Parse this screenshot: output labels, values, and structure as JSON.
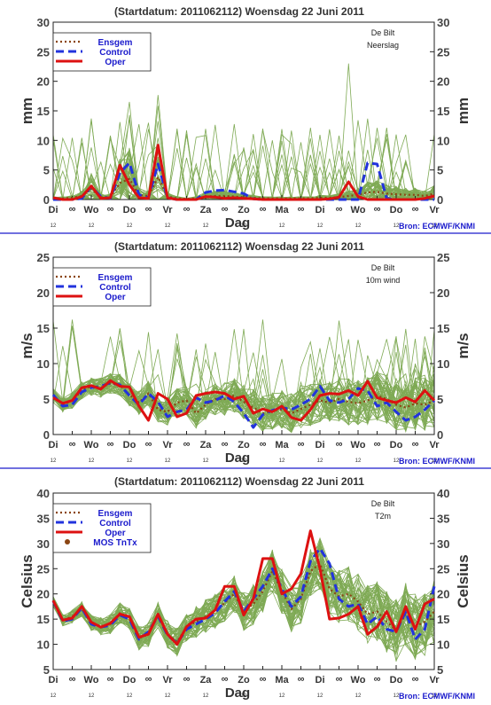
{
  "colors": {
    "ensgem": "#8B4513",
    "control": "#2233dd",
    "oper": "#dd1111",
    "members": "#7faa55",
    "mos": "#8B4513",
    "divider": "#1a1acc"
  },
  "chart_data": [
    {
      "type": "line",
      "title": "(Startdatum: 2011062112)   Woensdag  22 Juni      2011",
      "ylabel": "mm",
      "xlabel": "Dag",
      "location": "De Bilt",
      "variable": "Neerslag",
      "ylim": [
        0,
        30
      ],
      "yticks": [
        0,
        5,
        10,
        15,
        20,
        25,
        30
      ],
      "day_labels": [
        "Di",
        "Wo",
        "Do",
        "Vr",
        "Za",
        "Zo",
        "Ma",
        "Di",
        "Wo",
        "Do",
        "Vr"
      ],
      "hour_labels": [
        "12",
        "12",
        "12",
        "12",
        "12",
        "12",
        "12",
        "12",
        "12",
        "12",
        "12"
      ],
      "source": "Bron: ECMWF/KNMI",
      "legend": [
        "Ensgem",
        "Control",
        "Oper"
      ],
      "x_step_hours": 6,
      "series": [
        {
          "name": "Ensgem",
          "values": [
            0.2,
            0.2,
            0.3,
            0.6,
            1.8,
            0.4,
            0.4,
            2.8,
            3.5,
            0.8,
            0.6,
            3.8,
            0.5,
            0.2,
            0.1,
            0.2,
            0.5,
            0.6,
            0.6,
            0.5,
            0.4,
            0.3,
            0.2,
            0.2,
            0.2,
            0.2,
            0.2,
            0.2,
            0.3,
            0.3,
            0.4,
            0.6,
            0.8,
            1.2,
            1.3,
            1.0,
            0.9,
            0.8,
            0.8,
            0.6,
            1.0
          ]
        },
        {
          "name": "Control",
          "values": [
            0,
            0,
            0,
            0.2,
            2.2,
            0.5,
            0.2,
            4.5,
            6.2,
            0.8,
            0.3,
            6.0,
            0.3,
            0,
            0,
            0,
            1.2,
            1.5,
            1.6,
            1.3,
            1.0,
            0.1,
            0,
            0,
            0,
            0,
            0,
            0,
            0,
            0,
            0,
            0,
            0,
            6.2,
            6.0,
            0.2,
            0,
            0,
            0,
            0,
            0
          ]
        },
        {
          "name": "Oper",
          "values": [
            0.3,
            0,
            0,
            0.5,
            2.3,
            0.2,
            0.3,
            5.8,
            2.5,
            0.3,
            0.2,
            9.2,
            0.3,
            0,
            0,
            0,
            0.5,
            0.4,
            0.2,
            0.3,
            0.2,
            0.1,
            0,
            0,
            0,
            0,
            0,
            0,
            0,
            0.1,
            0.4,
            3.0,
            0.5,
            0,
            0,
            0,
            0,
            0,
            0,
            0.2,
            0.6
          ]
        }
      ]
    },
    {
      "type": "line",
      "title": "(Startdatum: 2011062112)   Woensdag  22 Juni      2011",
      "ylabel": "m/s",
      "xlabel": "Dag",
      "location": "De Bilt",
      "variable": "10m wind",
      "ylim": [
        0,
        25
      ],
      "yticks": [
        0,
        5,
        10,
        15,
        20,
        25
      ],
      "day_labels": [
        "Di",
        "Wo",
        "Do",
        "Vr",
        "Za",
        "Zo",
        "Ma",
        "Di",
        "Wo",
        "Do",
        "Vr"
      ],
      "hour_labels": [
        "12",
        "12",
        "12",
        "12",
        "12",
        "12",
        "12",
        "12",
        "12",
        "12",
        "12"
      ],
      "source": "Bron: ECMWF/KNMI",
      "legend": [
        "Ensgem",
        "Control",
        "Oper"
      ],
      "x_step_hours": 6,
      "series": [
        {
          "name": "Ensgem",
          "values": [
            5.5,
            4.2,
            4.8,
            6.2,
            6.8,
            6.6,
            7.2,
            7.0,
            5.6,
            4.5,
            5.8,
            3.5,
            3.2,
            4.5,
            4.8,
            3.0,
            4.2,
            5.0,
            5.0,
            5.5,
            4.6,
            3.8,
            3.0,
            3.4,
            3.5,
            3.0,
            3.6,
            4.2,
            4.8,
            4.5,
            5.0,
            4.6,
            4.4,
            4.8,
            5.5,
            5.0,
            4.2,
            3.8,
            4.4,
            4.2,
            4.8
          ]
        },
        {
          "name": "Control",
          "values": [
            5.6,
            4.0,
            4.2,
            6.0,
            6.6,
            6.8,
            7.3,
            7.0,
            5.5,
            4.2,
            5.8,
            4.6,
            2.5,
            3.2,
            3.5,
            5.2,
            4.5,
            4.8,
            5.5,
            4.6,
            3.0,
            1.0,
            2.8,
            3.4,
            3.8,
            3.5,
            4.2,
            5.0,
            6.8,
            4.8,
            4.5,
            5.0,
            6.5,
            6.2,
            4.0,
            4.5,
            3.2,
            2.0,
            2.5,
            3.5,
            4.8
          ]
        },
        {
          "name": "Oper",
          "values": [
            5.2,
            4.4,
            4.8,
            6.6,
            6.9,
            6.4,
            7.6,
            6.8,
            6.7,
            4.0,
            2.0,
            5.8,
            5.0,
            2.5,
            3.0,
            5.5,
            5.8,
            6.0,
            5.8,
            5.0,
            5.4,
            3.0,
            3.6,
            3.2,
            4.0,
            2.4,
            2.0,
            3.5,
            5.5,
            5.8,
            5.7,
            6.2,
            5.5,
            7.5,
            5.2,
            4.8,
            4.5,
            5.2,
            4.6,
            6.2,
            4.8
          ]
        }
      ]
    },
    {
      "type": "line",
      "title": "(Startdatum: 2011062112)   Woensdag  22 Juni      2011",
      "ylabel": "Celsius",
      "xlabel": "Dag",
      "location": "De Bilt",
      "variable": "T2m",
      "ylim": [
        5,
        40
      ],
      "yticks": [
        5,
        10,
        15,
        20,
        25,
        30,
        35,
        40
      ],
      "day_labels": [
        "Di",
        "Wo",
        "Do",
        "Vr",
        "Za",
        "Zo",
        "Ma",
        "Di",
        "Wo",
        "Do",
        "Vr"
      ],
      "hour_labels": [
        "12",
        "12",
        "12",
        "12",
        "12",
        "12",
        "12",
        "12",
        "12",
        "12",
        "12"
      ],
      "source": "Bron: ECMWF/KNMI",
      "legend": [
        "Ensgem",
        "Control",
        "Oper",
        "MOS TnTx"
      ],
      "x_step_hours": 6,
      "series": [
        {
          "name": "Ensgem",
          "values": [
            18.5,
            14.8,
            15.5,
            17.0,
            14.2,
            13.6,
            14.0,
            16.2,
            15.0,
            11.2,
            12.0,
            15.8,
            12.0,
            10.5,
            13.4,
            14.5,
            15.5,
            16.5,
            18.2,
            20.0,
            16.5,
            18.0,
            20.5,
            24.5,
            20.5,
            17.0,
            19.0,
            24.5,
            26.0,
            21.0,
            19.5,
            20.0,
            18.5,
            16.0,
            16.5,
            14.5,
            12.8,
            16.0,
            13.5,
            14.5,
            16.5
          ]
        },
        {
          "name": "Control",
          "values": [
            18.6,
            14.6,
            15.0,
            17.2,
            14.0,
            13.4,
            13.8,
            15.8,
            15.0,
            11.0,
            12.5,
            15.6,
            11.8,
            10.2,
            13.0,
            14.0,
            15.0,
            16.2,
            18.5,
            20.5,
            16.5,
            19.0,
            21.5,
            25.0,
            21.0,
            17.5,
            19.5,
            26.5,
            29.0,
            26.0,
            19.0,
            17.5,
            18.0,
            14.0,
            15.5,
            13.0,
            12.5,
            16.5,
            11.0,
            13.0,
            21.5
          ]
        },
        {
          "name": "Oper",
          "values": [
            18.7,
            14.8,
            15.2,
            17.5,
            14.4,
            13.4,
            14.2,
            16.0,
            15.5,
            11.4,
            12.0,
            16.0,
            12.0,
            10.0,
            13.5,
            15.0,
            15.2,
            16.8,
            21.5,
            21.5,
            15.8,
            19.0,
            27.0,
            27.0,
            20.0,
            21.0,
            24.0,
            32.5,
            25.0,
            15.0,
            15.2,
            16.0,
            17.5,
            12.0,
            13.5,
            16.5,
            12.5,
            17.5,
            13.0,
            18.0,
            19.0
          ]
        }
      ]
    }
  ]
}
